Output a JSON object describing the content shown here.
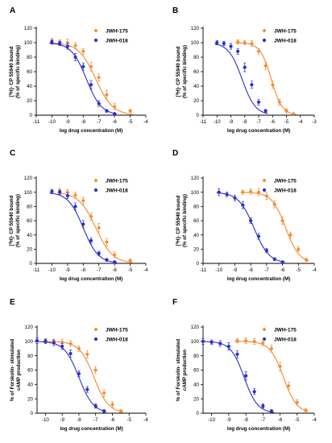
{
  "colors": {
    "jwh175": "#f28a30",
    "jwh018": "#2b2fcf"
  },
  "chart_data": [
    {
      "type": "scatter",
      "letter": "A",
      "ylabel_lines": [
        "[3H]- CP 55940 bound",
        "(% of specific binding)"
      ],
      "ylabel_sup": "3",
      "xlabel": "log drug concentration (M)",
      "xlim": [
        -11,
        -4
      ],
      "xticks": [
        -11,
        -10,
        -9,
        -8,
        -7,
        -6,
        -5,
        -4
      ],
      "ylim": [
        0,
        120
      ],
      "yticks": [
        0,
        20,
        40,
        60,
        80,
        100,
        120
      ],
      "grid": false,
      "legend_position": "top-right",
      "series": [
        {
          "name": "JWH-175",
          "color": "#f28a30",
          "marker": "diamond",
          "fit_log_ic50": -7.2,
          "fit_hill": 0.8,
          "x": [
            -10,
            -9.5,
            -9,
            -8.5,
            -8,
            -7.5,
            -7,
            -6.5,
            -6,
            -5
          ],
          "y": [
            102,
            101,
            100,
            96,
            88,
            67,
            52,
            28,
            12,
            6
          ],
          "err": [
            4,
            3,
            5,
            4,
            4,
            6,
            5,
            6,
            4,
            2
          ]
        },
        {
          "name": "JWH-018",
          "color": "#2b2fcf",
          "marker": "circle",
          "fit_log_ic50": -7.8,
          "fit_hill": 0.9,
          "x": [
            -10,
            -9.5,
            -9,
            -8.5,
            -8,
            -7.5,
            -7,
            -6.5,
            -6
          ],
          "y": [
            101,
            99,
            95,
            80,
            67,
            42,
            16,
            6,
            2
          ],
          "err": [
            3,
            3,
            4,
            5,
            5,
            6,
            4,
            2,
            1
          ]
        }
      ]
    },
    {
      "type": "scatter",
      "letter": "B",
      "ylabel_lines": [
        "[3H]- CP 55940 bound",
        "(% of specific binding)"
      ],
      "ylabel_sup": "3",
      "xlabel": "log drug concentration (M)",
      "xlim": [
        -11,
        -3
      ],
      "xticks": [
        -11,
        -10,
        -9,
        -8,
        -7,
        -6,
        -5,
        -4,
        -3
      ],
      "ylim": [
        0,
        120
      ],
      "yticks": [
        0,
        20,
        40,
        60,
        80,
        100,
        120
      ],
      "grid": false,
      "legend_position": "top-right",
      "series": [
        {
          "name": "JWH-175",
          "color": "#f28a30",
          "marker": "diamond",
          "fit_log_ic50": -6.1,
          "fit_hill": 1.1,
          "x": [
            -8.5,
            -8,
            -7.5,
            -7,
            -6.5,
            -6,
            -5.5,
            -5,
            -4.5
          ],
          "y": [
            101,
            100,
            99,
            88,
            68,
            42,
            18,
            6,
            2
          ],
          "err": [
            3,
            3,
            4,
            4,
            5,
            5,
            4,
            3,
            1
          ]
        },
        {
          "name": "JWH-018",
          "color": "#2b2fcf",
          "marker": "circle",
          "fit_log_ic50": -8.2,
          "fit_hill": 0.9,
          "x": [
            -10,
            -9.5,
            -9,
            -8.5,
            -8,
            -7.5,
            -7,
            -6.5
          ],
          "y": [
            100,
            99,
            95,
            88,
            66,
            42,
            18,
            6
          ],
          "err": [
            3,
            3,
            4,
            4,
            6,
            5,
            4,
            2
          ]
        }
      ]
    },
    {
      "type": "scatter",
      "letter": "C",
      "ylabel_lines": [
        "[3H]- CP 55940 bound",
        "(% of specific binding)"
      ],
      "ylabel_sup": "3",
      "xlabel": "log drug concentration (M)",
      "xlim": [
        -11,
        -4
      ],
      "xticks": [
        -11,
        -10,
        -9,
        -8,
        -7,
        -6,
        -5,
        -4
      ],
      "ylim": [
        0,
        120
      ],
      "yticks": [
        0,
        20,
        40,
        60,
        80,
        100,
        120
      ],
      "grid": false,
      "legend_position": "top-right",
      "series": [
        {
          "name": "JWH-175",
          "color": "#f28a30",
          "marker": "diamond",
          "fit_log_ic50": -7.2,
          "fit_hill": 0.8,
          "x": [
            -9.5,
            -9,
            -8.5,
            -8,
            -7.5,
            -7,
            -6.5,
            -6,
            -5
          ],
          "y": [
            102,
            100,
            96,
            88,
            66,
            50,
            30,
            12,
            4
          ],
          "err": [
            4,
            4,
            4,
            5,
            5,
            6,
            5,
            4,
            2
          ]
        },
        {
          "name": "JWH-018",
          "color": "#2b2fcf",
          "marker": "circle",
          "fit_log_ic50": -8.0,
          "fit_hill": 0.9,
          "x": [
            -10,
            -9.5,
            -9,
            -8.5,
            -8,
            -7.5,
            -7,
            -6.5,
            -6
          ],
          "y": [
            101,
            100,
            95,
            80,
            55,
            32,
            14,
            5,
            2
          ],
          "err": [
            3,
            3,
            4,
            5,
            5,
            4,
            3,
            2,
            1
          ]
        }
      ]
    },
    {
      "type": "scatter",
      "letter": "D",
      "ylabel_lines": [
        "[3H]- CP 55940 bound",
        "(% of specific binding)"
      ],
      "ylabel_sup": "3",
      "xlabel": "log drug concentration (M)",
      "xlim": [
        -11,
        -4
      ],
      "xticks": [
        -11,
        -10,
        -9,
        -8,
        -7,
        -6,
        -5,
        -4
      ],
      "ylim": [
        0,
        120
      ],
      "yticks": [
        0,
        20,
        40,
        60,
        80,
        100,
        120
      ],
      "grid": false,
      "legend_position": "top-right",
      "series": [
        {
          "name": "JWH-175",
          "color": "#f28a30",
          "marker": "diamond",
          "fit_log_ic50": -5.8,
          "fit_hill": 1.0,
          "x": [
            -8.5,
            -8,
            -7.5,
            -7,
            -6.5,
            -6,
            -5.5,
            -5,
            -4.5
          ],
          "y": [
            100,
            101,
            100,
            95,
            83,
            60,
            40,
            20,
            5
          ],
          "err": [
            3,
            4,
            5,
            5,
            5,
            5,
            4,
            3,
            2
          ]
        },
        {
          "name": "JWH-018",
          "color": "#2b2fcf",
          "marker": "circle",
          "fit_log_ic50": -7.8,
          "fit_hill": 0.9,
          "x": [
            -10,
            -9.5,
            -9,
            -8.5,
            -8,
            -7.5,
            -7,
            -6.5,
            -6
          ],
          "y": [
            100,
            97,
            92,
            82,
            60,
            38,
            18,
            6,
            2
          ],
          "err": [
            5,
            3,
            4,
            5,
            4,
            4,
            3,
            2,
            1
          ]
        }
      ]
    },
    {
      "type": "scatter",
      "letter": "E",
      "ylabel_lines": [
        "% of Forskolin- stimulated",
        "cAMP production"
      ],
      "ylabel_sup": "",
      "xlabel": "log drug concentration (M)",
      "xlim": [
        -10.5,
        -4
      ],
      "xticks": [
        -10,
        -9,
        -8,
        -7,
        -6,
        -5,
        -4
      ],
      "ylim": [
        0,
        120
      ],
      "yticks": [
        0,
        20,
        40,
        60,
        80,
        100,
        120
      ],
      "grid": false,
      "legend_position": "top-right",
      "series": [
        {
          "name": "JWH-175",
          "color": "#f28a30",
          "marker": "diamond",
          "fit_log_ic50": -7.1,
          "fit_hill": 1.0,
          "x": [
            -10,
            -9.5,
            -9,
            -8.5,
            -8,
            -7.5,
            -7,
            -6.5,
            -6,
            -5.5
          ],
          "y": [
            101,
            100,
            99,
            97,
            90,
            82,
            60,
            28,
            12,
            3
          ],
          "err": [
            3,
            3,
            4,
            4,
            4,
            5,
            5,
            5,
            4,
            2
          ]
        },
        {
          "name": "JWH-018",
          "color": "#2b2fcf",
          "marker": "circle",
          "fit_log_ic50": -8.0,
          "fit_hill": 1.0,
          "x": [
            -10.5,
            -10,
            -9.5,
            -9,
            -8.5,
            -8,
            -7.5,
            -7,
            -6.5
          ],
          "y": [
            101,
            100,
            98,
            93,
            83,
            55,
            33,
            10,
            3
          ],
          "err": [
            4,
            3,
            4,
            4,
            5,
            4,
            4,
            3,
            2
          ]
        }
      ]
    },
    {
      "type": "scatter",
      "letter": "F",
      "ylabel_lines": [
        "% of Forskolin- stimulated",
        "cAMP production"
      ],
      "ylabel_sup": "",
      "xlabel": "log drug concentration (M)",
      "xlim": [
        -10.5,
        -4
      ],
      "xticks": [
        -10,
        -9,
        -8,
        -7,
        -6,
        -5,
        -4
      ],
      "ylim": [
        0,
        120
      ],
      "yticks": [
        0,
        20,
        40,
        60,
        80,
        100,
        120
      ],
      "grid": false,
      "legend_position": "top-right",
      "series": [
        {
          "name": "JWH-175",
          "color": "#f28a30",
          "marker": "diamond",
          "fit_log_ic50": -5.8,
          "fit_hill": 1.1,
          "x": [
            -8.5,
            -8,
            -7.5,
            -7,
            -6.5,
            -6,
            -5.5,
            -5,
            -4.5
          ],
          "y": [
            101,
            101,
            100,
            98,
            90,
            65,
            38,
            15,
            4
          ],
          "err": [
            3,
            4,
            4,
            4,
            5,
            6,
            5,
            4,
            2
          ]
        },
        {
          "name": "JWH-018",
          "color": "#2b2fcf",
          "marker": "circle",
          "fit_log_ic50": -8.1,
          "fit_hill": 1.1,
          "x": [
            -10.5,
            -10,
            -9.5,
            -9,
            -8.5,
            -8,
            -7.5,
            -7,
            -6.5
          ],
          "y": [
            100,
            99,
            97,
            93,
            82,
            52,
            30,
            10,
            3
          ],
          "err": [
            4,
            3,
            4,
            5,
            5,
            6,
            4,
            3,
            2
          ]
        }
      ]
    }
  ]
}
